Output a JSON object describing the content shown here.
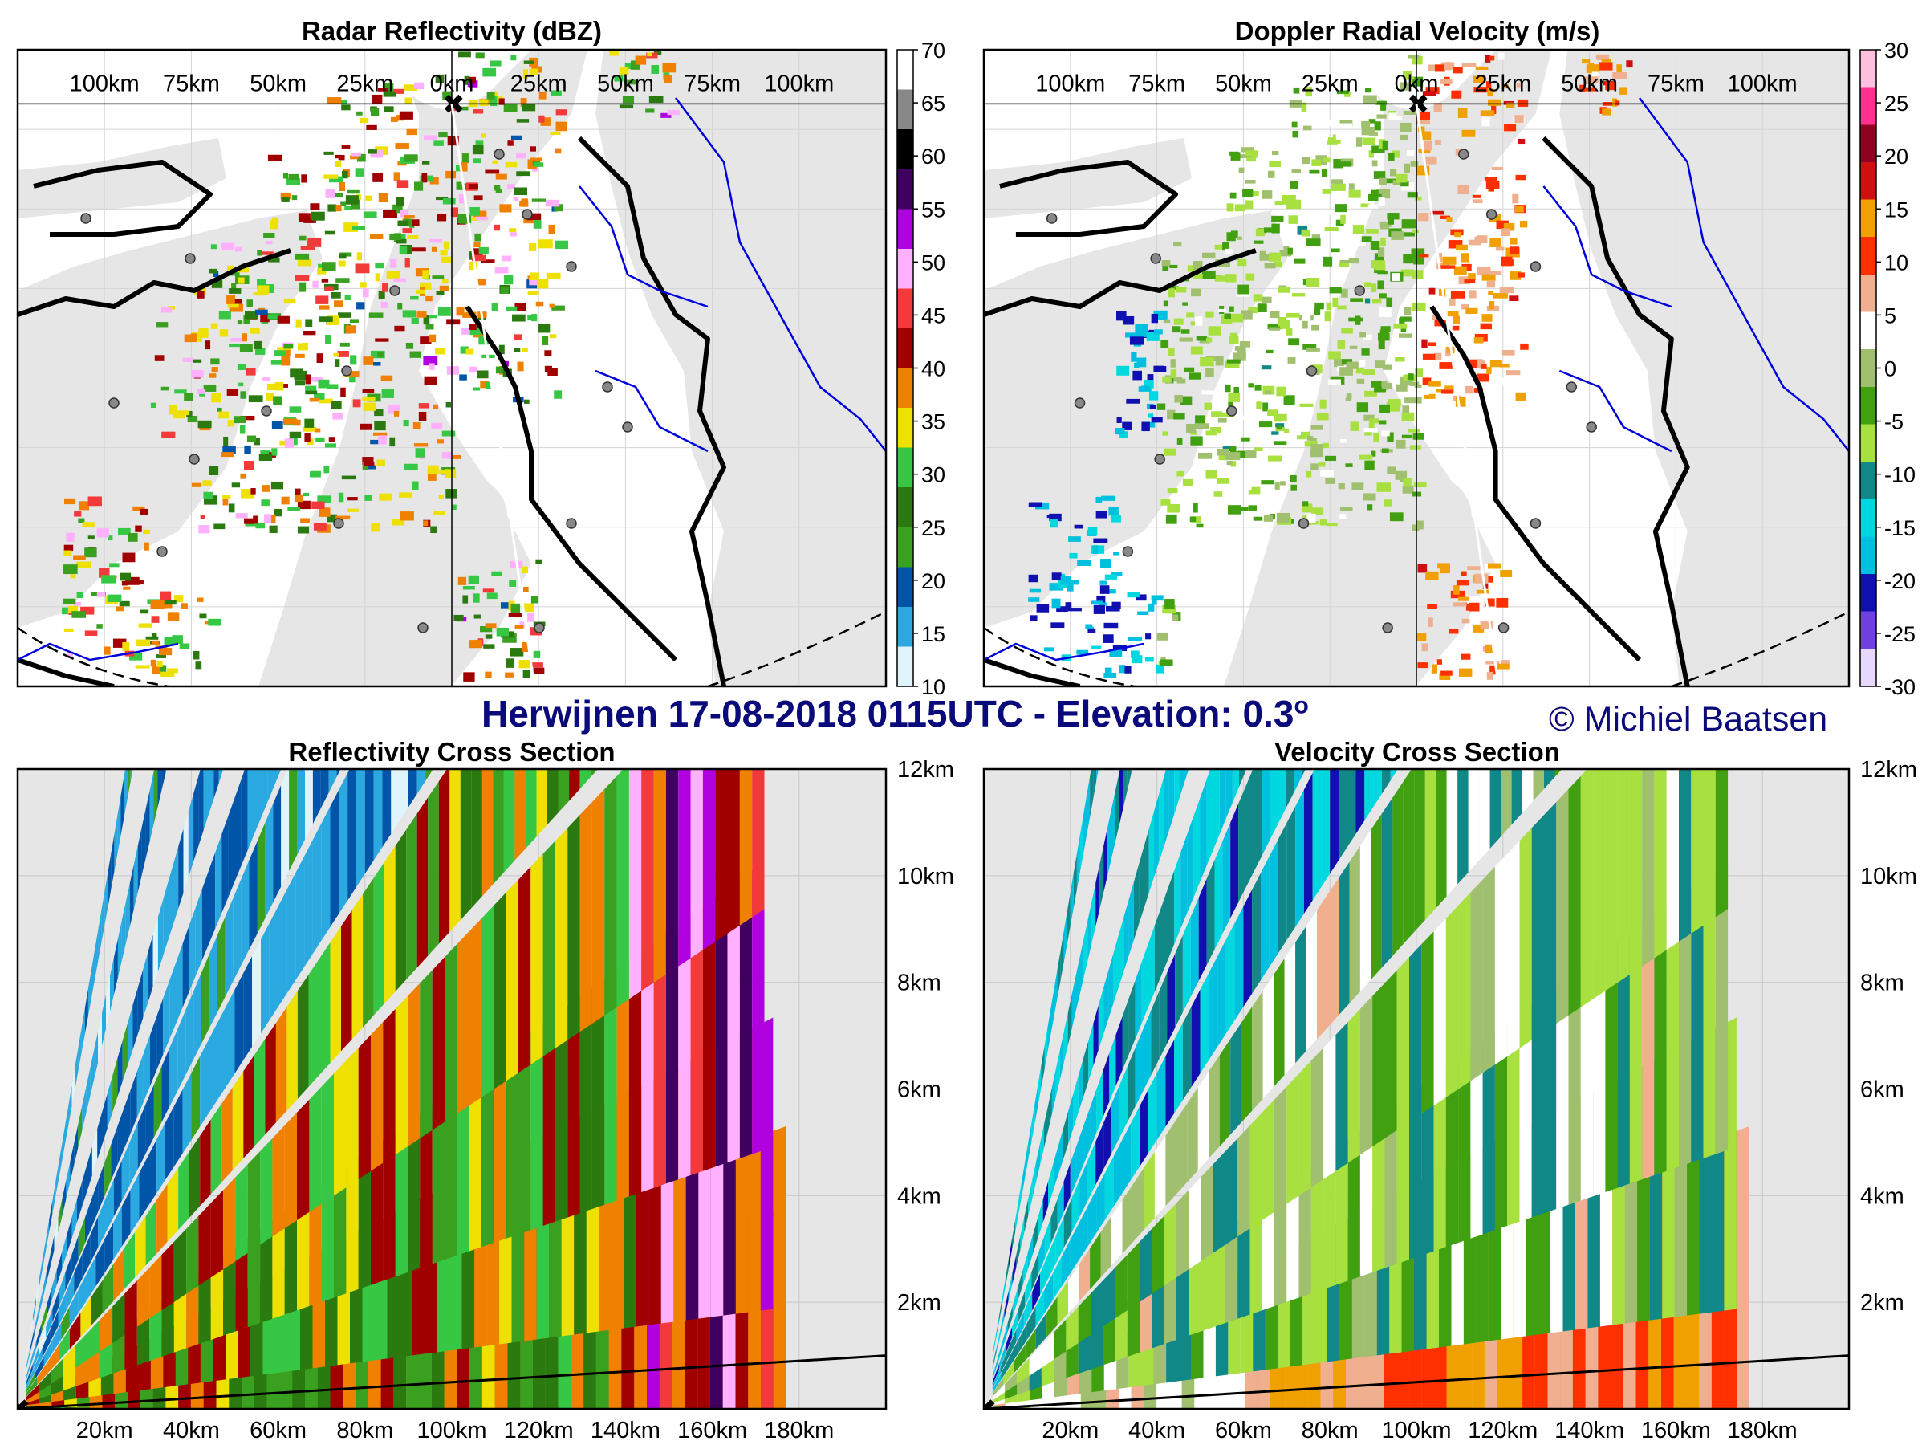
{
  "supertitle": "Herwijnen 17-08-2018 0115UTC - Elevation: 0.3",
  "supertitle_sup": "o",
  "copyright": "© Michiel Baatsen",
  "colors": {
    "frame": "#000000",
    "land": "#e6e6e6",
    "river": "#0000dd",
    "grid": "#d4d4d4",
    "title_blue": "#0a0a7a"
  },
  "chart_data": [
    {
      "id": "reflectivity_map",
      "type": "heatmap",
      "title": "Radar Reflectivity (dBZ)",
      "x_tick_labels": [
        "100km",
        "75km",
        "50km",
        "25km",
        "0km",
        "25km",
        "50km",
        "75km",
        "100km"
      ],
      "colorbar": {
        "ticks": [
          70,
          65,
          60,
          55,
          50,
          45,
          40,
          35,
          30,
          25,
          20,
          15,
          10
        ],
        "range": [
          10,
          70
        ],
        "stops": [
          "#e0f4fc",
          "#2aa8e0",
          "#0055a8",
          "#3aa020",
          "#2a7a10",
          "#36c844",
          "#eee000",
          "#f08000",
          "#a00000",
          "#f23a3a",
          "#ffb0ff",
          "#b000e0",
          "#400060",
          "#000000",
          "#888888",
          "#ffffff"
        ]
      }
    },
    {
      "id": "velocity_map",
      "type": "heatmap",
      "title": "Doppler Radial Velocity (m/s)",
      "x_tick_labels": [
        "100km",
        "75km",
        "50km",
        "25km",
        "0km",
        "25km",
        "50km",
        "75km",
        "100km"
      ],
      "colorbar": {
        "ticks": [
          30,
          25,
          20,
          15,
          10,
          5,
          0,
          -5,
          -10,
          -15,
          -20,
          -25,
          -30
        ],
        "range": [
          -30,
          30
        ],
        "stops": [
          "#e8d8ff",
          "#7040e0",
          "#1010b0",
          "#00c0e0",
          "#00d8e0",
          "#108888",
          "#a8e040",
          "#40a010",
          "#a0c070",
          "#ffffff",
          "#f0b090",
          "#ff3000",
          "#f0a000",
          "#d01010",
          "#900020",
          "#ff3090",
          "#ffc0e0"
        ]
      }
    },
    {
      "id": "reflectivity_xsec",
      "type": "heatmap",
      "title": "Reflectivity Cross Section",
      "x_tick_labels": [
        "20km",
        "40km",
        "60km",
        "80km",
        "100km",
        "120km",
        "140km",
        "160km",
        "180km"
      ],
      "y_tick_labels": [
        "12km",
        "10km",
        "8km",
        "6km",
        "4km",
        "2km"
      ],
      "xlim": [
        0,
        200
      ],
      "ylim": [
        0,
        12
      ]
    },
    {
      "id": "velocity_xsec",
      "type": "heatmap",
      "title": "Velocity Cross Section",
      "x_tick_labels": [
        "20km",
        "40km",
        "60km",
        "80km",
        "100km",
        "120km",
        "140km",
        "160km",
        "180km"
      ],
      "y_tick_labels": [
        "12km",
        "10km",
        "8km",
        "6km",
        "4km",
        "2km"
      ],
      "xlim": [
        0,
        200
      ],
      "ylim": [
        0,
        12
      ]
    }
  ]
}
